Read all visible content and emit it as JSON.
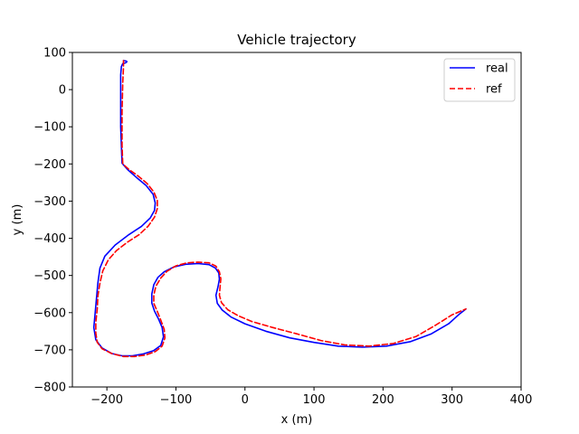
{
  "chart_data": {
    "type": "line",
    "title": "Vehicle trajectory",
    "xlabel": "x (m)",
    "ylabel": "y (m)",
    "xlim": [
      -250,
      400
    ],
    "ylim": [
      -800,
      100
    ],
    "xticks": [
      -200,
      -100,
      0,
      100,
      200,
      300,
      400
    ],
    "yticks": [
      100,
      0,
      -100,
      -200,
      -300,
      -400,
      -500,
      -600,
      -700,
      -800
    ],
    "grid": false,
    "legend_position": "upper right",
    "series": [
      {
        "name": "real",
        "color": "#0000ff",
        "dash": "solid",
        "x": [
          -176,
          -172,
          -171,
          -173,
          -177,
          -179,
          -180,
          -180,
          -180,
          -178,
          -170,
          -158,
          -143,
          -133,
          -130,
          -131,
          -137,
          -150,
          -168,
          -188,
          -203,
          -210,
          -213,
          -215,
          -217,
          -219,
          -216,
          -207,
          -193,
          -178,
          -163,
          -147,
          -132,
          -122,
          -118,
          -120,
          -125,
          -131,
          -135,
          -135,
          -132,
          -126,
          -117,
          -103,
          -86,
          -68,
          -52,
          -43,
          -38,
          -37,
          -39,
          -42,
          -40,
          -33,
          -20,
          0,
          30,
          65,
          100,
          135,
          170,
          205,
          240,
          270,
          295,
          310,
          320
        ],
        "y": [
          78,
          77,
          75,
          72,
          70,
          62,
          40,
          0,
          -100,
          -198,
          -215,
          -235,
          -258,
          -282,
          -305,
          -325,
          -345,
          -368,
          -390,
          -418,
          -448,
          -480,
          -520,
          -560,
          -600,
          -640,
          -673,
          -695,
          -710,
          -716,
          -716,
          -711,
          -702,
          -688,
          -665,
          -640,
          -618,
          -596,
          -574,
          -550,
          -525,
          -505,
          -490,
          -477,
          -470,
          -468,
          -471,
          -480,
          -493,
          -510,
          -530,
          -553,
          -575,
          -593,
          -612,
          -630,
          -650,
          -668,
          -680,
          -690,
          -693,
          -690,
          -678,
          -657,
          -630,
          -605,
          -590
        ]
      },
      {
        "name": "ref",
        "color": "#ff0000",
        "dash": "dashed",
        "x": [
          -176,
          -176,
          -177,
          -178,
          -178,
          -177,
          -168,
          -155,
          -142,
          -132,
          -127,
          -127,
          -131,
          -140,
          -153,
          -170,
          -186,
          -198,
          -206,
          -210,
          -213,
          -214,
          -216,
          -216,
          -214,
          -207,
          -193,
          -176,
          -160,
          -144,
          -130,
          -120,
          -116,
          -117,
          -122,
          -127,
          -132,
          -132,
          -129,
          -122,
          -113,
          -100,
          -84,
          -68,
          -52,
          -42,
          -37,
          -35,
          -36,
          -37,
          -34,
          -25,
          -10,
          10,
          40,
          75,
          110,
          145,
          180,
          215,
          248,
          275,
          300,
          320
        ],
        "y": [
          78,
          60,
          20,
          -60,
          -150,
          -200,
          -215,
          -232,
          -252,
          -275,
          -298,
          -320,
          -343,
          -367,
          -390,
          -410,
          -433,
          -458,
          -488,
          -520,
          -555,
          -590,
          -625,
          -655,
          -680,
          -697,
          -710,
          -718,
          -718,
          -714,
          -705,
          -690,
          -668,
          -645,
          -620,
          -597,
          -575,
          -553,
          -529,
          -507,
          -489,
          -474,
          -466,
          -464,
          -466,
          -475,
          -490,
          -509,
          -530,
          -553,
          -573,
          -592,
          -608,
          -624,
          -640,
          -657,
          -675,
          -687,
          -690,
          -683,
          -664,
          -635,
          -606,
          -590
        ]
      }
    ]
  }
}
